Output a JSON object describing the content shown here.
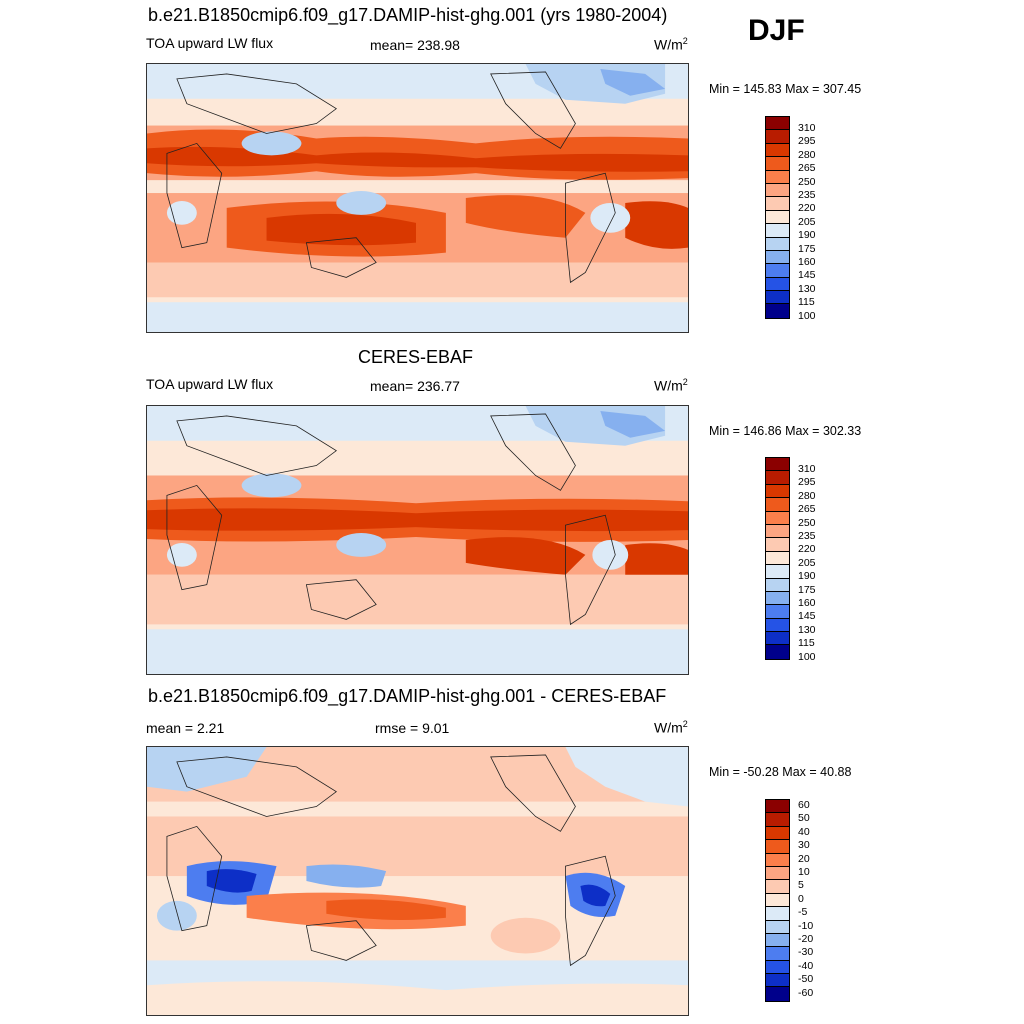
{
  "season": "DJF",
  "panels": [
    {
      "title": "b.e21.B1850cmip6.f09_g17.DAMIP-hist-ghg.001 (yrs 1980-2004)",
      "left_label": "TOA upward LW flux",
      "mid_label": "mean= 238.98",
      "units_label": "W/m",
      "units_sup": "2",
      "minmax": "Min = 145.83 Max = 307.45",
      "ticks": [
        "310",
        "295",
        "280",
        "265",
        "250",
        "235",
        "220",
        "205",
        "190",
        "175",
        "160",
        "145",
        "130",
        "115",
        "100"
      ]
    },
    {
      "title": "CERES-EBAF",
      "left_label": "TOA upward LW flux",
      "mid_label": "mean= 236.77",
      "units_label": "W/m",
      "units_sup": "2",
      "minmax": "Min = 146.86 Max = 302.33",
      "ticks": [
        "310",
        "295",
        "280",
        "265",
        "250",
        "235",
        "220",
        "205",
        "190",
        "175",
        "160",
        "145",
        "130",
        "115",
        "100"
      ]
    },
    {
      "title": "b.e21.B1850cmip6.f09_g17.DAMIP-hist-ghg.001 - CERES-EBAF",
      "left_label": "mean =   2.21",
      "mid_label": "rmse =   9.01",
      "units_label": "W/m",
      "units_sup": "2",
      "minmax": "Min = -50.28 Max =  40.88",
      "ticks": [
        "60",
        "50",
        "40",
        "30",
        "20",
        "10",
        "5",
        "0",
        "-5",
        "-10",
        "-20",
        "-30",
        "-40",
        "-50",
        "-60"
      ]
    }
  ],
  "colors": {
    "scale": [
      "#8b0000",
      "#b81c00",
      "#d93800",
      "#ee5a1c",
      "#fb7f4b",
      "#fca582",
      "#fdcab2",
      "#fde8d8",
      "#dceaf7",
      "#b7d3f2",
      "#86b0ef",
      "#4d7df0",
      "#2553e6",
      "#0d2fc7",
      "#00008b"
    ]
  }
}
